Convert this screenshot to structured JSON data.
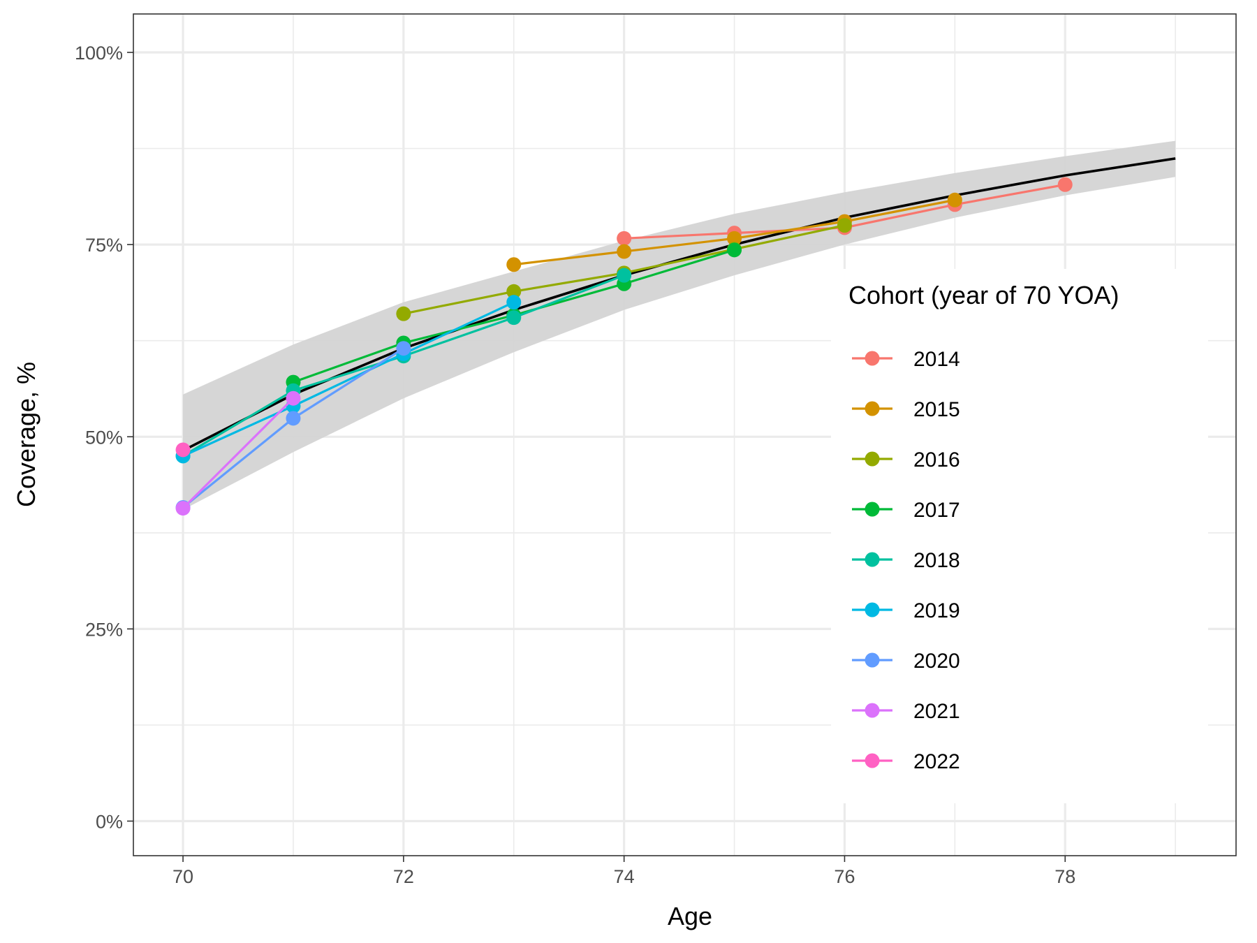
{
  "chart_data": {
    "type": "line",
    "xlabel": "Age",
    "ylabel": "Coverage, %",
    "xlim": [
      69.55,
      79.55
    ],
    "ylim": [
      -0.045,
      1.05
    ],
    "x_ticks": [
      70,
      72,
      74,
      76,
      78
    ],
    "x_tick_labels": [
      "70",
      "72",
      "74",
      "76",
      "78"
    ],
    "y_ticks": [
      0,
      0.25,
      0.5,
      0.75,
      1.0
    ],
    "y_tick_labels": [
      "0%",
      "25%",
      "50%",
      "75%",
      "100%"
    ],
    "grid": true,
    "legend": {
      "title": "Cohort (year of 70 YOA)",
      "position": "right"
    },
    "fit": {
      "color": "#000000",
      "band_color": "#d4d4d4",
      "x": [
        70,
        71,
        72,
        73,
        74,
        75,
        76,
        77,
        78,
        79
      ],
      "y": [
        0.482,
        0.555,
        0.615,
        0.665,
        0.71,
        0.75,
        0.785,
        0.814,
        0.84,
        0.862
      ],
      "lower": [
        0.405,
        0.48,
        0.55,
        0.61,
        0.665,
        0.71,
        0.75,
        0.785,
        0.814,
        0.838
      ],
      "upper": [
        0.555,
        0.62,
        0.675,
        0.715,
        0.755,
        0.79,
        0.818,
        0.843,
        0.865,
        0.885
      ]
    },
    "series": [
      {
        "name": "2014",
        "color": "#F8766D",
        "x": [
          74,
          75,
          76,
          77,
          78
        ],
        "y": [
          0.758,
          0.765,
          0.772,
          0.802,
          0.828
        ]
      },
      {
        "name": "2015",
        "color": "#D39200",
        "x": [
          73,
          74,
          75,
          76,
          77
        ],
        "y": [
          0.724,
          0.741,
          0.758,
          0.78,
          0.808
        ]
      },
      {
        "name": "2016",
        "color": "#93AA00",
        "x": [
          72,
          73,
          74,
          75,
          76
        ],
        "y": [
          0.66,
          0.689,
          0.713,
          0.744,
          0.775
        ]
      },
      {
        "name": "2017",
        "color": "#00BA38",
        "x": [
          71,
          72,
          73,
          74,
          75
        ],
        "y": [
          0.571,
          0.622,
          0.658,
          0.699,
          0.743
        ]
      },
      {
        "name": "2018",
        "color": "#00C19F",
        "x": [
          70,
          71,
          72,
          73,
          74
        ],
        "y": [
          0.475,
          0.56,
          0.605,
          0.655,
          0.71
        ]
      },
      {
        "name": "2019",
        "color": "#00B9E3",
        "x": [
          70,
          71,
          72,
          73
        ],
        "y": [
          0.475,
          0.54,
          0.608,
          0.675
        ]
      },
      {
        "name": "2020",
        "color": "#619CFF",
        "x": [
          70,
          71,
          72
        ],
        "y": [
          0.408,
          0.524,
          0.615
        ]
      },
      {
        "name": "2021",
        "color": "#DB72FB",
        "x": [
          70,
          71
        ],
        "y": [
          0.407,
          0.55
        ]
      },
      {
        "name": "2022",
        "color": "#FF61C3",
        "x": [
          70
        ],
        "y": [
          0.483
        ]
      }
    ]
  }
}
